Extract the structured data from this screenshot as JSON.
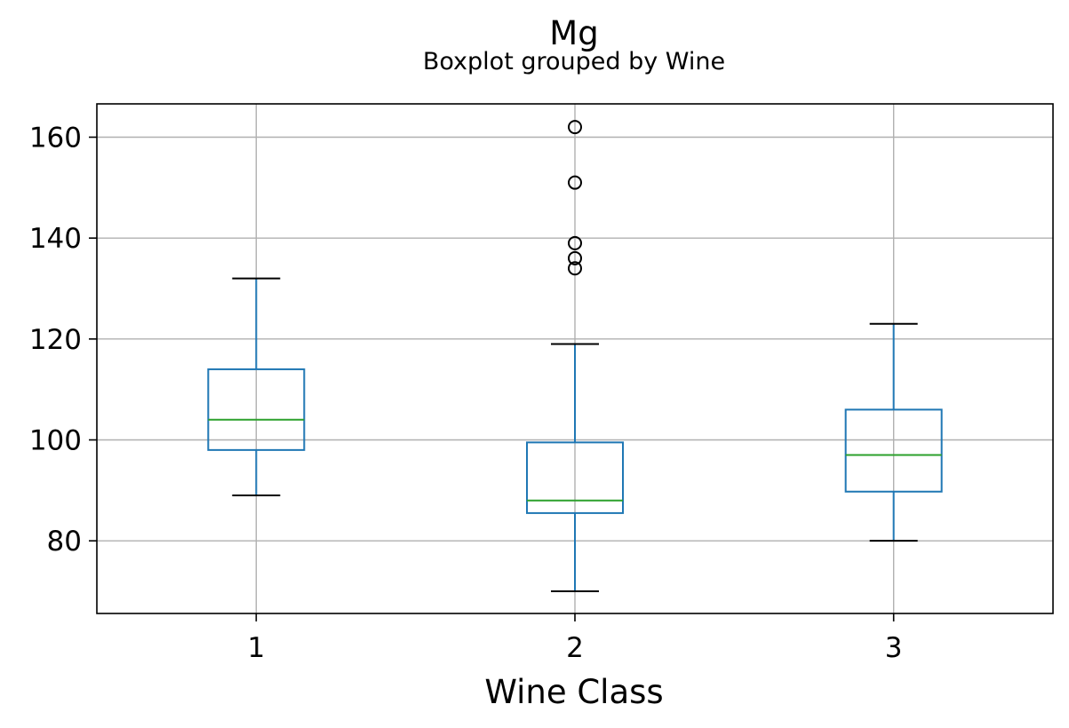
{
  "chart_data": {
    "type": "boxplot",
    "title": "Mg",
    "subtitle": "Boxplot grouped by Wine",
    "xlabel": "Wine Class",
    "ylabel": "",
    "categories": [
      "1",
      "2",
      "3"
    ],
    "ylim": [
      65.6,
      166.6
    ],
    "yticks": [
      80,
      100,
      120,
      140,
      160
    ],
    "grid": true,
    "boxes": [
      {
        "category": "1",
        "whisker_low": 89,
        "q1": 98,
        "median": 104,
        "q3": 114,
        "whisker_high": 132,
        "outliers": []
      },
      {
        "category": "2",
        "whisker_low": 70,
        "q1": 85.5,
        "median": 88,
        "q3": 99.5,
        "whisker_high": 119,
        "outliers": [
          134,
          136,
          139,
          151,
          162
        ]
      },
      {
        "category": "3",
        "whisker_low": 80,
        "q1": 89.75,
        "median": 97,
        "q3": 106,
        "whisker_high": 123,
        "outliers": []
      }
    ],
    "colors": {
      "box": "#1f77b4",
      "median": "#2ca02c",
      "cap": "#000000",
      "grid": "#b0b0b0",
      "outlier": "#000000"
    }
  }
}
